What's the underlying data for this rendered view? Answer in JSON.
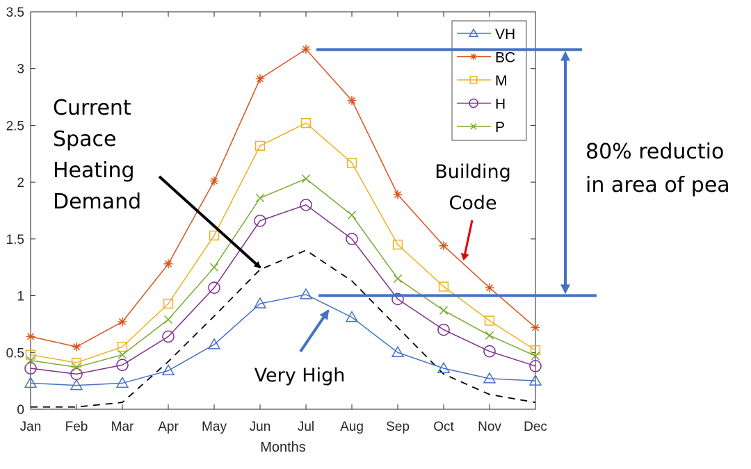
{
  "chart_data": {
    "type": "line",
    "title": "",
    "xlabel": "Months",
    "ylabel": "",
    "categories": [
      "Jan",
      "Feb",
      "Mar",
      "Apr",
      "May",
      "Jun",
      "Jul",
      "Aug",
      "Sep",
      "Oct",
      "Nov",
      "Dec"
    ],
    "ylim": [
      0,
      3.5
    ],
    "yticks": [
      0,
      0.5,
      1,
      1.5,
      2,
      2.5,
      3,
      3.5
    ],
    "ytick_labels": [
      "0",
      "0.5",
      "1",
      "1.5",
      "2",
      "2.5",
      "3",
      "3.5"
    ],
    "grid": false,
    "legend_position": "top-right",
    "series": [
      {
        "name": "VH",
        "color": "#4472c4",
        "marker": "triangle",
        "values": [
          0.23,
          0.21,
          0.23,
          0.34,
          0.57,
          0.93,
          1.01,
          0.81,
          0.5,
          0.36,
          0.27,
          0.25
        ]
      },
      {
        "name": "BC",
        "color": "#d95319",
        "marker": "asterisk",
        "values": [
          0.64,
          0.55,
          0.77,
          1.28,
          2.01,
          2.91,
          3.17,
          2.72,
          1.89,
          1.44,
          1.07,
          0.72
        ]
      },
      {
        "name": "M",
        "color": "#edb120",
        "marker": "square",
        "values": [
          0.48,
          0.41,
          0.55,
          0.93,
          1.53,
          2.32,
          2.52,
          2.17,
          1.45,
          1.08,
          0.78,
          0.52
        ]
      },
      {
        "name": "H",
        "color": "#7e2f8e",
        "marker": "circle",
        "values": [
          0.36,
          0.31,
          0.39,
          0.64,
          1.07,
          1.66,
          1.8,
          1.5,
          0.97,
          0.7,
          0.51,
          0.38
        ]
      },
      {
        "name": "P",
        "color": "#77ac30",
        "marker": "x",
        "values": [
          0.43,
          0.37,
          0.48,
          0.79,
          1.25,
          1.86,
          2.03,
          1.71,
          1.15,
          0.87,
          0.65,
          0.47
        ]
      },
      {
        "name": "Current Space Heating Demand",
        "color": "#000000",
        "marker": "none",
        "dashed": true,
        "in_legend": false,
        "values": [
          0.02,
          0.02,
          0.06,
          0.42,
          0.82,
          1.23,
          1.4,
          1.13,
          0.72,
          0.31,
          0.13,
          0.06
        ]
      }
    ],
    "annotations": {
      "current_demand": [
        "Current",
        "Space",
        "Heating",
        "Demand"
      ],
      "building_code": [
        "Building",
        "Code"
      ],
      "very_high": "Very High",
      "reduction": [
        "80% reductio",
        "in area of pea"
      ],
      "peak_line_value": 3.17,
      "low_line_value": 1.01,
      "reduction_color": "#4472c4",
      "building_code_arrow_color": "#e00000"
    }
  }
}
